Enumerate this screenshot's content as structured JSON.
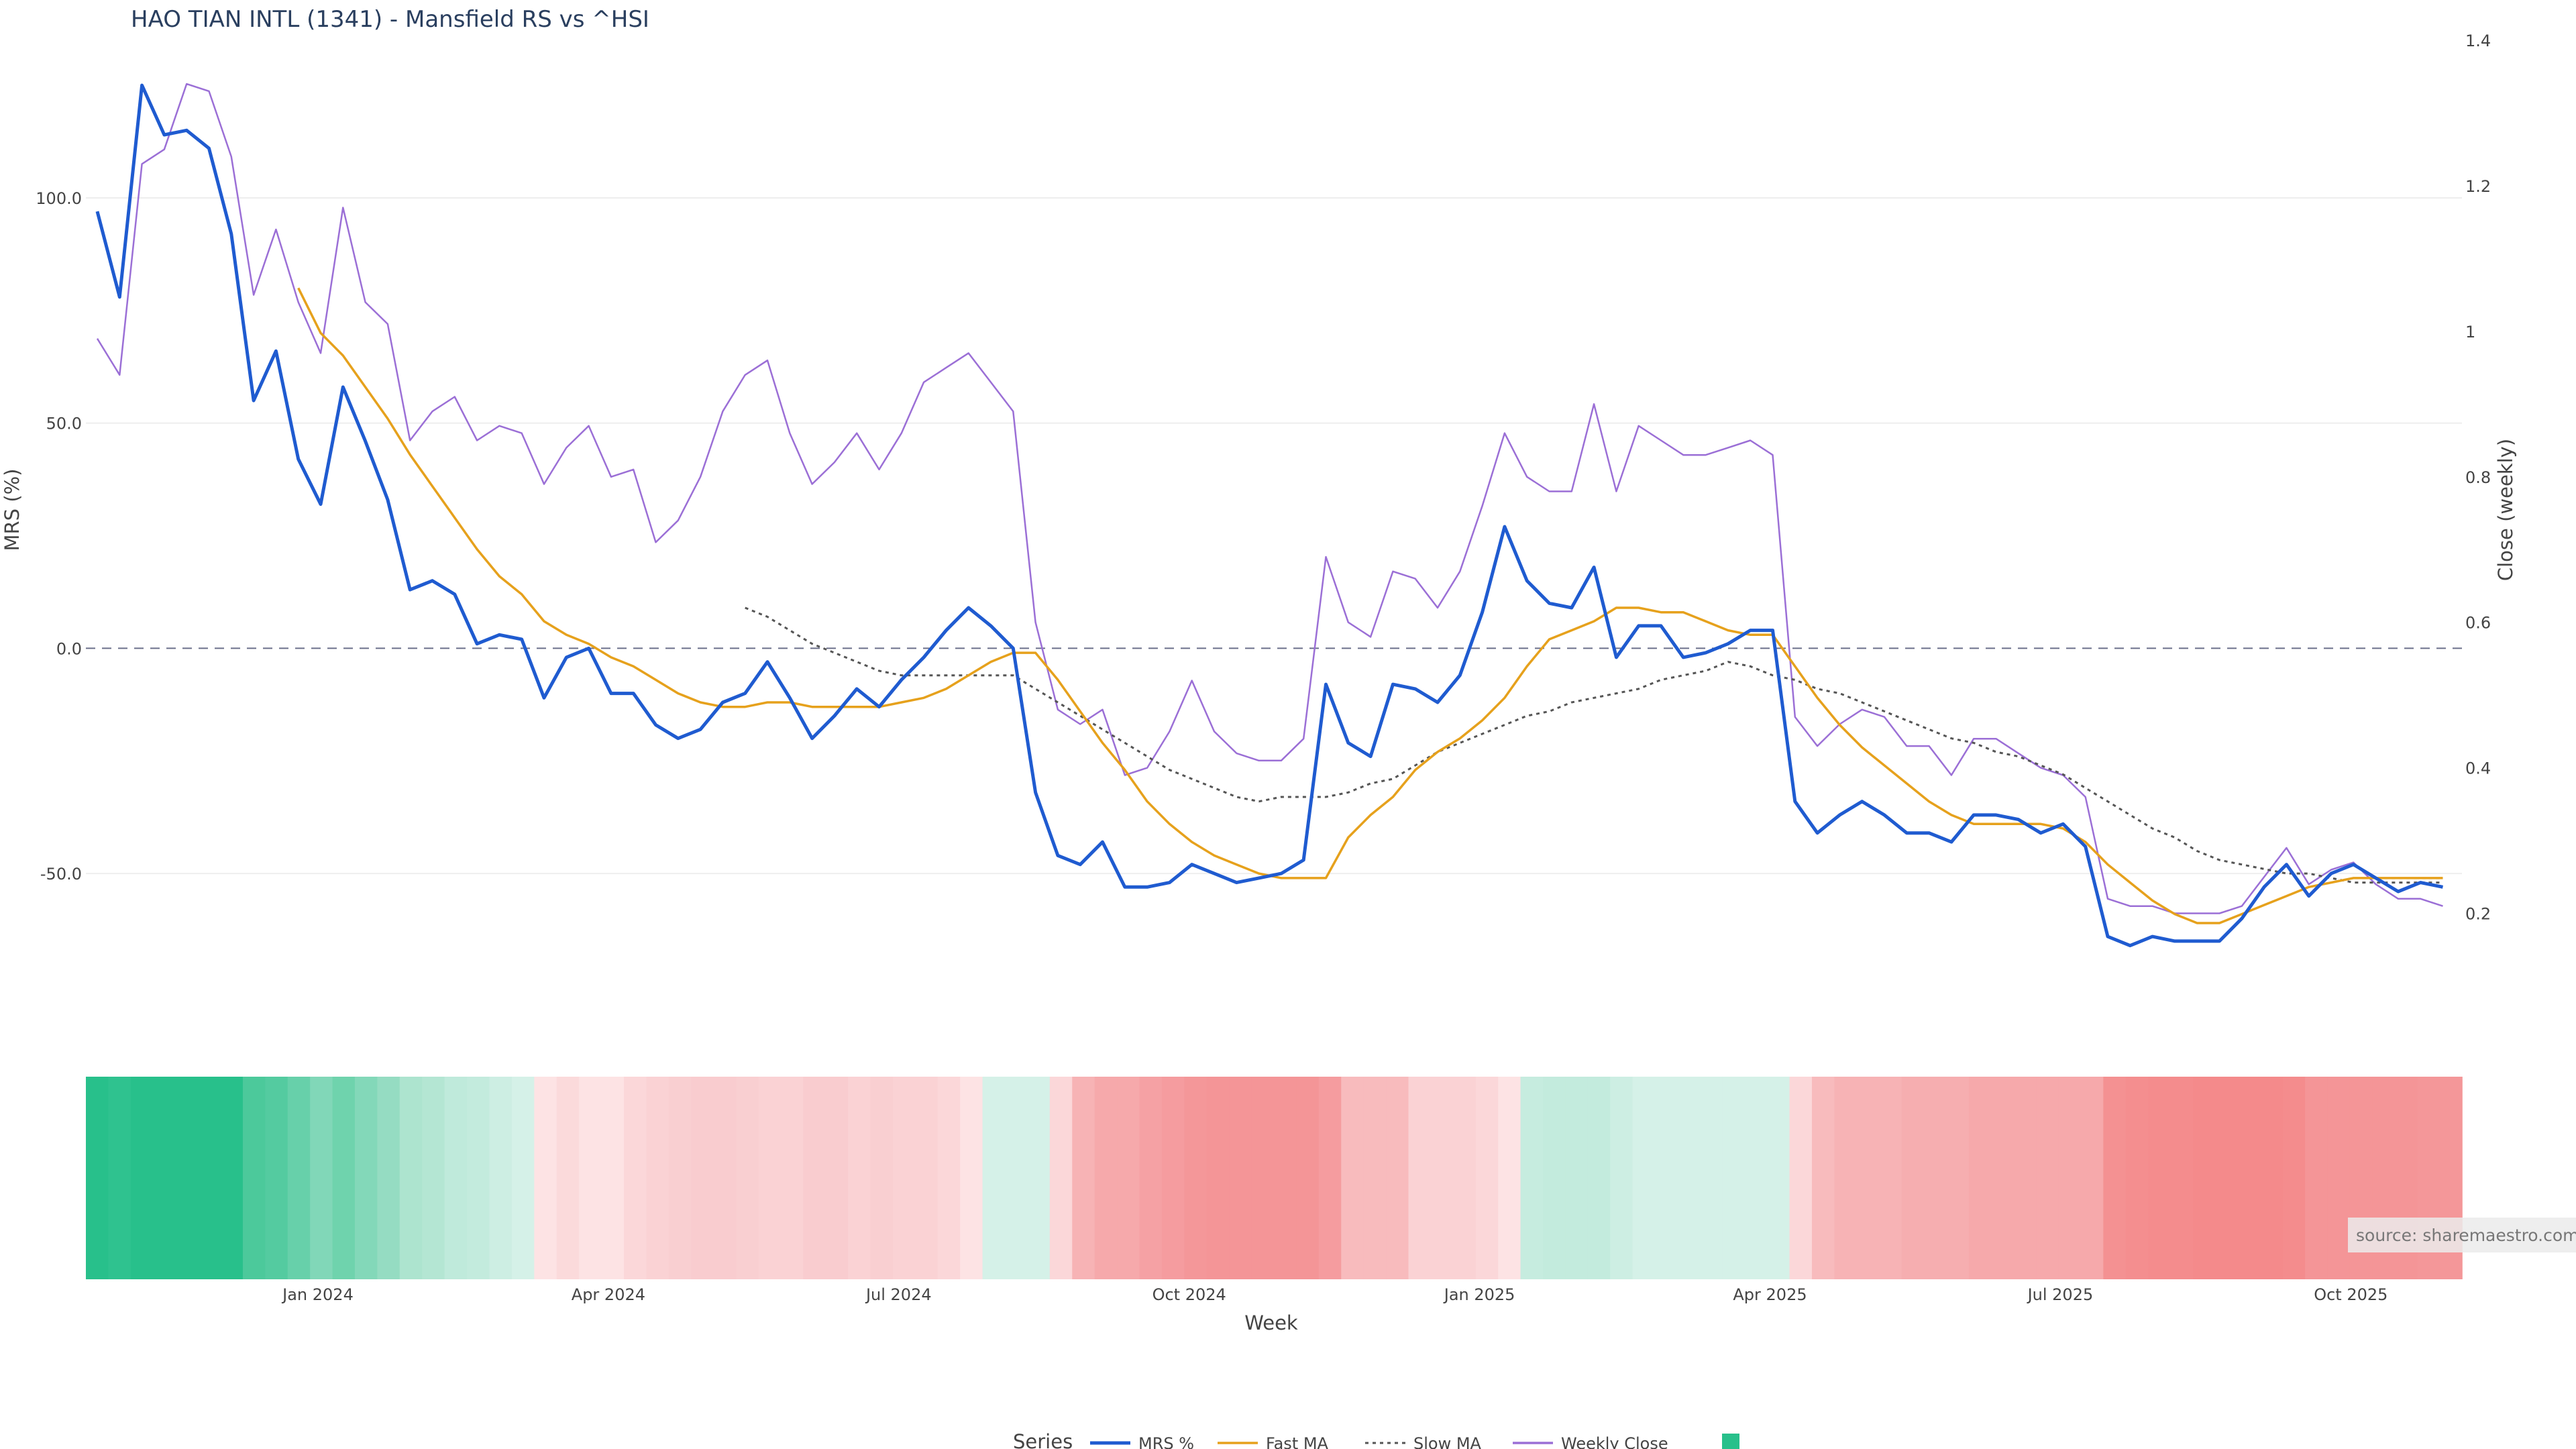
{
  "chart_data": {
    "type": "line",
    "title": "HAO TIAN INTL (1341) - Mansfield RS vs ^HSI",
    "xlabel": "Week",
    "ylabel_left": "MRS (%)",
    "ylabel_right": "Close (weekly)",
    "x_ticks": [
      "Jan 2024",
      "Apr 2024",
      "Jul 2024",
      "Oct 2024",
      "Jan 2025",
      "Apr 2025",
      "Jul 2025",
      "Oct 2025"
    ],
    "y_left_ticks": [
      "100.0",
      "50.0",
      "0.0",
      "-50.0"
    ],
    "y_right_ticks": [
      "1.4",
      "1.2",
      "1",
      "0.8",
      "0.6",
      "0.4",
      "0.2"
    ],
    "y_left_range": [
      -75,
      135
    ],
    "y_right_range": [
      0.1,
      1.4
    ],
    "reference_line": 0,
    "series": [
      {
        "name": "MRS %",
        "color": "#1f5bd0",
        "style": "solid",
        "values": [
          97,
          78,
          125,
          114,
          115,
          111,
          92,
          55,
          66,
          42,
          32,
          58,
          46,
          33,
          13,
          15,
          12,
          1,
          3,
          2,
          -11,
          -2,
          0,
          -10,
          -10,
          -17,
          -20,
          -18,
          -12,
          -10,
          -3,
          -11,
          -20,
          -15,
          -9,
          -13,
          -7,
          -2,
          4,
          9,
          5,
          0,
          -32,
          -46,
          -48,
          -43,
          -53,
          -53,
          -52,
          -48,
          -50,
          -52,
          -51,
          -50,
          -47,
          -8,
          -21,
          -24,
          -8,
          -9,
          -12,
          -6,
          8,
          27,
          15,
          10,
          9,
          18,
          -2,
          5,
          5,
          -2,
          -1,
          1,
          4,
          4,
          -34,
          -41,
          -37,
          -34,
          -37,
          -41,
          -41,
          -43,
          -37,
          -37,
          -38,
          -41,
          -39,
          -44,
          -64,
          -66,
          -64,
          -65,
          -65,
          -65,
          -60,
          -53,
          -48,
          -55,
          -50,
          -48,
          -51,
          -54,
          -52,
          -53
        ]
      },
      {
        "name": "Fast MA",
        "color": "#e6a11c",
        "style": "solid",
        "start_index": 9,
        "values": [
          80,
          70,
          65,
          58,
          51,
          43,
          36,
          29,
          22,
          16,
          12,
          6,
          3,
          1,
          -2,
          -4,
          -7,
          -10,
          -12,
          -13,
          -13,
          -12,
          -12,
          -13,
          -13,
          -13,
          -13,
          -12,
          -11,
          -9,
          -6,
          -3,
          -1,
          -1,
          -7,
          -14,
          -21,
          -27,
          -34,
          -39,
          -43,
          -46,
          -48,
          -50,
          -51,
          -51,
          -51,
          -42,
          -37,
          -33,
          -27,
          -23,
          -20,
          -16,
          -11,
          -4,
          2,
          4,
          6,
          9,
          9,
          8,
          8,
          6,
          4,
          3,
          3,
          -4,
          -11,
          -17,
          -22,
          -26,
          -30,
          -34,
          -37,
          -39,
          -39,
          -39,
          -39,
          -40,
          -43,
          -48,
          -52,
          -56,
          -59,
          -61,
          -61,
          -59,
          -57,
          -55,
          -53,
          -52,
          -51,
          -51,
          -51,
          -51,
          -51
        ]
      },
      {
        "name": "Slow MA",
        "color": "#555555",
        "style": "dotted",
        "start_index": 29,
        "values": [
          9,
          7,
          4,
          1,
          -1,
          -3,
          -5,
          -6,
          -6,
          -6,
          -6,
          -6,
          -6,
          -9,
          -12,
          -15,
          -18,
          -21,
          -24,
          -27,
          -29,
          -31,
          -33,
          -34,
          -33,
          -33,
          -33,
          -32,
          -30,
          -29,
          -26,
          -23,
          -21,
          -19,
          -17,
          -15,
          -14,
          -12,
          -11,
          -10,
          -9,
          -7,
          -6,
          -5,
          -3,
          -4,
          -6,
          -7,
          -9,
          -10,
          -12,
          -14,
          -16,
          -18,
          -20,
          -21,
          -23,
          -24,
          -26,
          -28,
          -31,
          -34,
          -37,
          -40,
          -42,
          -45,
          -47,
          -48,
          -49,
          -50,
          -50,
          -51,
          -52,
          -52,
          -52,
          -52,
          -52
        ]
      },
      {
        "name": "Weekly Close",
        "color": "#9b6fd6",
        "style": "thin",
        "axis": "right",
        "values": [
          0.99,
          0.94,
          1.23,
          1.25,
          1.34,
          1.33,
          1.24,
          1.05,
          1.14,
          1.04,
          0.97,
          1.17,
          1.04,
          1.01,
          0.85,
          0.89,
          0.91,
          0.85,
          0.87,
          0.86,
          0.79,
          0.84,
          0.87,
          0.8,
          0.81,
          0.71,
          0.74,
          0.8,
          0.89,
          0.94,
          0.96,
          0.86,
          0.79,
          0.82,
          0.86,
          0.81,
          0.86,
          0.93,
          0.95,
          0.97,
          0.93,
          0.89,
          0.6,
          0.48,
          0.46,
          0.48,
          0.39,
          0.4,
          0.45,
          0.52,
          0.45,
          0.42,
          0.41,
          0.41,
          0.44,
          0.69,
          0.6,
          0.58,
          0.67,
          0.66,
          0.62,
          0.67,
          0.76,
          0.86,
          0.8,
          0.78,
          0.78,
          0.9,
          0.78,
          0.87,
          0.85,
          0.83,
          0.83,
          0.84,
          0.85,
          0.83,
          0.47,
          0.43,
          0.46,
          0.48,
          0.47,
          0.43,
          0.43,
          0.39,
          0.44,
          0.44,
          0.42,
          0.4,
          0.39,
          0.36,
          0.22,
          0.21,
          0.21,
          0.2,
          0.2,
          0.2,
          0.21,
          0.25,
          0.29,
          0.24,
          0.26,
          0.27,
          0.24,
          0.22,
          0.22,
          0.21
        ]
      }
    ],
    "heatmap_strip": {
      "colors": [
        "#28c08b",
        "#2fc28f",
        "#28c08b",
        "#28c08b",
        "#28c08b",
        "#28c08b",
        "#28c08b",
        "#4cc99b",
        "#54cba0",
        "#67d0aa",
        "#81d7b8",
        "#6fd3ad",
        "#83d8b9",
        "#95dcc2",
        "#ade4cf",
        "#b4e6d3",
        "#bfeadb",
        "#c3ebdd",
        "#cdeee3",
        "#d5f1e8",
        "#fde3e4",
        "#fbdadb",
        "#fde3e4",
        "#fde3e4",
        "#fbd7d9",
        "#fad2d4",
        "#f9cfd1",
        "#f9cccf",
        "#f9cccf",
        "#f9cfd1",
        "#fad2d4",
        "#fad2d4",
        "#f9cccf",
        "#f9cccf",
        "#fad2d4",
        "#f9cfd1",
        "#fad2d4",
        "#fad2d4",
        "#fbd7d9",
        "#fde3e4",
        "#d5f1e8",
        "#d5f1e8",
        "#d5f1e8",
        "#fbd7d9",
        "#f7b3b5",
        "#f6a9ab",
        "#f6a9ab",
        "#f5a1a4",
        "#f59c9f",
        "#f49799",
        "#f49597",
        "#f49597",
        "#f49597",
        "#f49597",
        "#f49597",
        "#f59c9f",
        "#f8bbbd",
        "#f8bbbd",
        "#f8bbbd",
        "#fad2d4",
        "#fad2d4",
        "#fad2d4",
        "#fbd7d9",
        "#fde3e4",
        "#c6ecdf",
        "#c3ebdd",
        "#c3ebdd",
        "#c3ebdd",
        "#cdeee3",
        "#d5f1e8",
        "#d5f1e8",
        "#d5f1e8",
        "#d5f1e8",
        "#d5f1e8",
        "#d5f1e8",
        "#d5f1e8",
        "#fbd7d9",
        "#f8bbbd",
        "#f7b3b5",
        "#f7b3b5",
        "#f7b3b5",
        "#f6aeb0",
        "#f6aeb0",
        "#f6aeb0",
        "#f6a9ab",
        "#f6a9ab",
        "#f6a9ab",
        "#f6a9ab",
        "#f6a9ab",
        "#f6a9ab",
        "#f49192",
        "#f48e8f",
        "#f48c8d",
        "#f48c8d",
        "#f48a8b",
        "#f48a8b",
        "#f48a8b",
        "#f48a8b",
        "#f48c8d",
        "#f49597",
        "#f49597",
        "#f49597",
        "#f49597",
        "#f49597",
        "#f49799",
        "#f49799"
      ]
    },
    "legend": {
      "title": "Series",
      "placement": "bottom-center",
      "entries": [
        "MRS %",
        "Fast MA",
        "Slow MA",
        "Weekly Close",
        ""
      ]
    },
    "grid": true,
    "source_note": "source: sharemaestro.com"
  }
}
